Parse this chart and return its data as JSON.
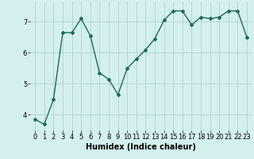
{
  "x": [
    0,
    1,
    2,
    3,
    4,
    5,
    6,
    7,
    8,
    9,
    10,
    11,
    12,
    13,
    14,
    15,
    16,
    17,
    18,
    19,
    20,
    21,
    22,
    23
  ],
  "y": [
    3.85,
    3.7,
    4.5,
    6.65,
    6.65,
    7.1,
    6.55,
    5.35,
    5.15,
    4.65,
    5.5,
    5.8,
    6.1,
    6.45,
    7.05,
    7.35,
    7.35,
    6.9,
    7.15,
    7.1,
    7.15,
    7.35,
    7.35,
    6.5
  ],
  "xlabel": "Humidex (Indice chaleur)",
  "line_color": "#1a6b5a",
  "bg_color": "#d4f0ee",
  "grid_color": "#b0d4d0",
  "ylim": [
    3.5,
    7.65
  ],
  "xlim": [
    -0.5,
    23.5
  ],
  "yticks": [
    4,
    5,
    6,
    7
  ],
  "xticks": [
    0,
    1,
    2,
    3,
    4,
    5,
    6,
    7,
    8,
    9,
    10,
    11,
    12,
    13,
    14,
    15,
    16,
    17,
    18,
    19,
    20,
    21,
    22,
    23
  ],
  "marker": "D",
  "markersize": 2.0,
  "linewidth": 1.0,
  "xlabel_fontsize": 7,
  "tick_fontsize": 6
}
